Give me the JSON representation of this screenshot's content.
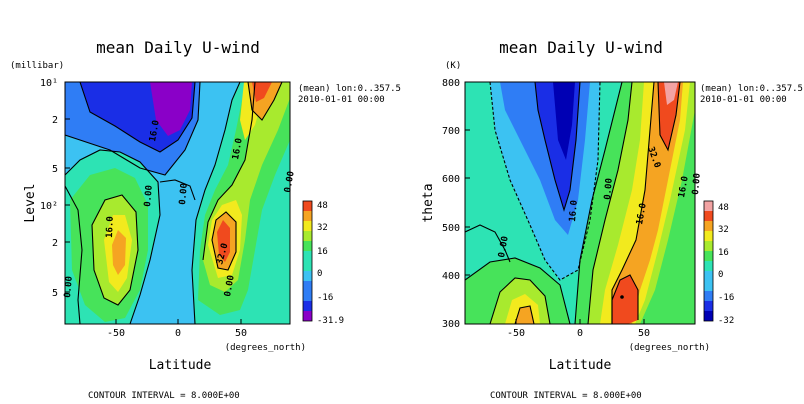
{
  "colors": {
    "c_m32": "#8a00c8",
    "c_m24": "#1a2ee6",
    "c_m16": "#2f7df5",
    "c_m8": "#3cc2f2",
    "c_0": "#2de3b4",
    "c_8": "#47e35a",
    "c_16": "#a8ea2e",
    "c_24": "#f2ea1e",
    "c_32": "#f5a422",
    "c_40": "#f04a1e",
    "c_48": "#f2a3a3",
    "c_m32_right": "#0000b4"
  },
  "chart_data": [
    {
      "type": "heatmap",
      "title": "mean Daily U-wind",
      "xlabel": "Latitude",
      "xunits": "(degrees_north)",
      "ylabel": "Level",
      "yunits": "(millibar)",
      "y_scale": "log",
      "y_ticks": [
        "10¹",
        "2",
        "5",
        "10²",
        "2",
        "5"
      ],
      "x_ticks": [
        "-50",
        "0",
        "50"
      ],
      "xlim": [
        -90,
        90
      ],
      "info_line1": "(mean) lon:0..357.5",
      "info_line2": "2010-01-01 00:00",
      "colorbar_labels": [
        "48",
        "32",
        "16",
        "0",
        "-16",
        "-31.9"
      ],
      "contour_labels": [
        "16.0",
        "0.00",
        "0.00",
        "16.0",
        "0.00",
        "16.0",
        "0.00",
        "32.0",
        "0.00",
        "16.0",
        "0.00"
      ],
      "footer": "CONTOUR INTERVAL = 8.000E+00",
      "contour_interval": 8.0
    },
    {
      "type": "heatmap",
      "title": "mean Daily U-wind",
      "xlabel": "Latitude",
      "xunits": "(degrees_north)",
      "ylabel": "theta",
      "yunits": "(K)",
      "y_ticks": [
        "800",
        "700",
        "600",
        "500",
        "400",
        "300"
      ],
      "ylim": [
        300,
        800
      ],
      "x_ticks": [
        "-50",
        "0",
        "50"
      ],
      "xlim": [
        -90,
        90
      ],
      "info_line1": "(mean) lon:0..357.5",
      "info_line2": "2010-01-01 00:00",
      "colorbar_labels": [
        "48",
        "32",
        "16",
        "0",
        "-16",
        "-32"
      ],
      "contour_labels": [
        "0.00",
        "16.0",
        "16.0",
        "32.0",
        "16.0",
        "0.00",
        "0.00"
      ],
      "footer": "CONTOUR INTERVAL = 8.000E+00",
      "contour_interval": 8.0
    }
  ]
}
